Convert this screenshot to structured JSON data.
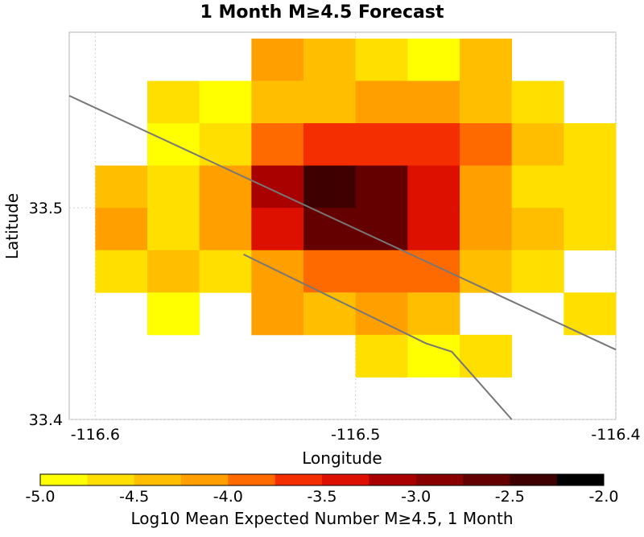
{
  "chart_data": {
    "type": "heatmap",
    "title": "1 Month M≥4.5 Forecast",
    "xlabel": "Longitude",
    "ylabel": "Latitude",
    "xlim": [
      -116.61,
      -116.4
    ],
    "ylim": [
      33.4,
      33.583
    ],
    "xticks": [
      {
        "value": -116.6,
        "label": "-116.6"
      },
      {
        "value": -116.5,
        "label": "-116.5"
      },
      {
        "value": -116.4,
        "label": "-116.4"
      }
    ],
    "yticks": [
      {
        "value": 33.5,
        "label": "33.5"
      },
      {
        "value": 33.4,
        "label": "33.4"
      }
    ],
    "cell_size_deg": 0.02,
    "grid_origin": {
      "lon": -116.6,
      "lat": 33.42
    },
    "grid_rows_top_to_bottom": [
      [
        null,
        null,
        null,
        -4.1,
        -4.4,
        -4.6,
        -4.85,
        -4.4,
        null,
        null,
        null
      ],
      [
        null,
        -4.6,
        -4.85,
        -4.4,
        -4.4,
        -4.1,
        -4.1,
        -4.4,
        -4.6,
        null,
        null
      ],
      [
        null,
        -4.85,
        -4.6,
        -3.9,
        -3.6,
        -3.6,
        -3.6,
        -3.9,
        -4.4,
        -4.6,
        null
      ],
      [
        -4.4,
        -4.6,
        -4.1,
        -3.1,
        -2.4,
        -2.6,
        -3.4,
        -4.1,
        -4.6,
        -4.6,
        null
      ],
      [
        -4.1,
        -4.6,
        -4.1,
        -3.4,
        -2.6,
        -2.6,
        -3.4,
        -4.1,
        -4.4,
        -4.6,
        null
      ],
      [
        -4.6,
        -4.4,
        -4.6,
        -4.1,
        -3.9,
        -3.9,
        -3.9,
        -4.4,
        -4.6,
        null,
        null
      ],
      [
        null,
        -4.85,
        null,
        -4.1,
        -4.4,
        -4.1,
        -4.4,
        null,
        null,
        -4.6,
        null
      ],
      [
        null,
        null,
        null,
        null,
        null,
        -4.6,
        -4.85,
        -4.6,
        null,
        null,
        null
      ]
    ],
    "fault_traces": [
      {
        "points": [
          [
            -116.61,
            33.553
          ],
          [
            -116.4,
            33.433
          ]
        ]
      },
      {
        "points": [
          [
            -116.543,
            33.478
          ],
          [
            -116.473,
            33.436
          ],
          [
            -116.463,
            33.432
          ],
          [
            -116.44,
            33.4
          ]
        ]
      }
    ],
    "colorbar": {
      "label": "Log10 Mean Expected Number M≥4.5, 1 Month",
      "min": -5.0,
      "max": -2.0,
      "ticks": [
        {
          "value": -5.0,
          "label": "-5.0"
        },
        {
          "value": -4.5,
          "label": "-4.5"
        },
        {
          "value": -4.0,
          "label": "-4.0"
        },
        {
          "value": -3.5,
          "label": "-3.5"
        },
        {
          "value": -3.0,
          "label": "-3.0"
        },
        {
          "value": -2.5,
          "label": "-2.5"
        },
        {
          "value": -2.0,
          "label": "-2.0"
        }
      ],
      "colors": [
        "#ffff00",
        "#ffdf00",
        "#ffbf00",
        "#ff9f00",
        "#ff6a00",
        "#f52e00",
        "#dd1000",
        "#a90000",
        "#880000",
        "#650000",
        "#3e0000",
        "#000000"
      ]
    },
    "grid": true
  }
}
